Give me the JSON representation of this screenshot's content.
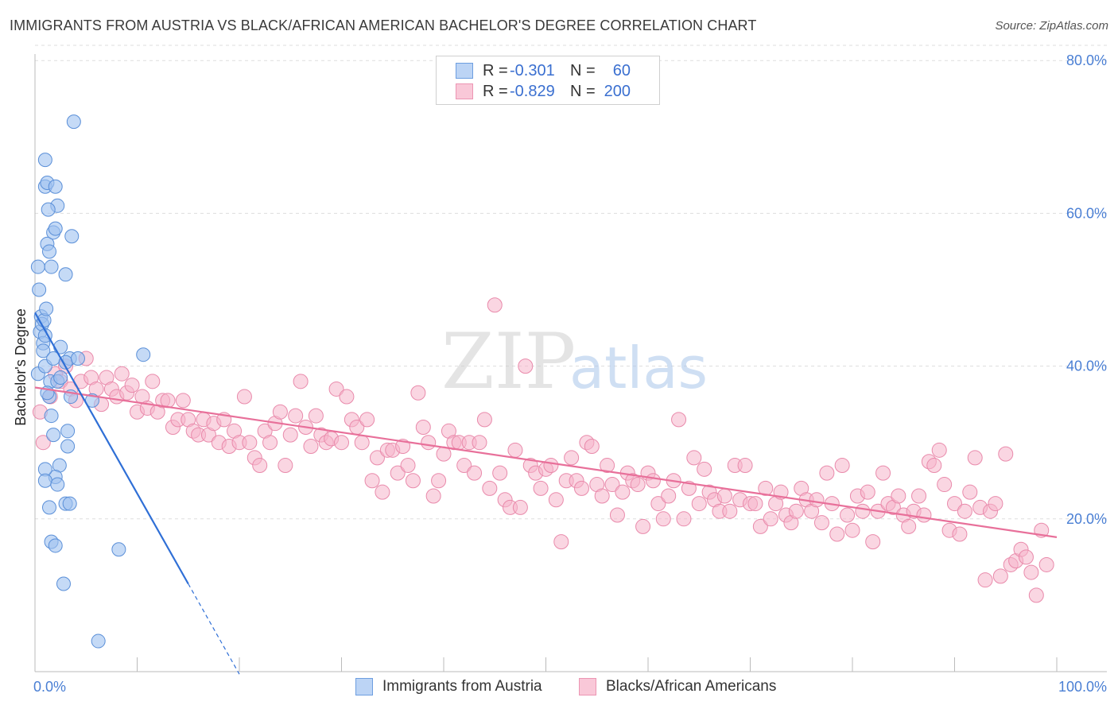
{
  "header": {
    "title": "IMMIGRANTS FROM AUSTRIA VS BLACK/AFRICAN AMERICAN BACHELOR'S DEGREE CORRELATION CHART",
    "source": "Source: ZipAtlas.com"
  },
  "watermark": {
    "zip": "ZIP",
    "atlas": "atlas"
  },
  "legend": {
    "rows": [
      {
        "r_label": "R =",
        "r_value": "-0.301",
        "n_label": "N =",
        "n_value": "60"
      },
      {
        "r_label": "R =",
        "r_value": "-0.829",
        "n_label": "N =",
        "n_value": "200"
      }
    ]
  },
  "bottom_legend": {
    "austria": "Immigrants from Austria",
    "black": "Blacks/African Americans"
  },
  "colors": {
    "austria_fill": "#9fc2f0",
    "austria_stroke": "#5a8fd8",
    "austria_line": "#2f6fd6",
    "black_fill": "#f6b4cb",
    "black_stroke": "#e98aab",
    "black_line": "#e8709a",
    "grid": "#dddddd",
    "axis_label": "#4a7fd4"
  },
  "chart_data": {
    "type": "scatter",
    "title": "IMMIGRANTS FROM AUSTRIA VS BLACK/AFRICAN AMERICAN BACHELOR'S DEGREE CORRELATION CHART",
    "xlabel": "",
    "ylabel": "Bachelor's Degree",
    "xlim": [
      0,
      100
    ],
    "ylim": [
      0,
      82
    ],
    "x_tick_labels": [
      "0.0%",
      "100.0%"
    ],
    "y_ticks": [
      20,
      40,
      60,
      80
    ],
    "y_tick_labels": [
      "20.0%",
      "40.0%",
      "60.0%",
      "80.0%"
    ],
    "grid": true,
    "series": [
      {
        "name": "Immigrants from Austria",
        "r": -0.301,
        "n": 60,
        "trend": {
          "x0": 0.0,
          "y0": 47.0,
          "x1": 15.0,
          "y1": 11.5,
          "dash_to_x": 20.0
        },
        "points": [
          [
            0.3,
            39
          ],
          [
            0.5,
            44.5
          ],
          [
            0.6,
            46.5
          ],
          [
            0.7,
            45.5
          ],
          [
            0.8,
            43
          ],
          [
            0.9,
            46
          ],
          [
            1.0,
            40
          ],
          [
            1.1,
            47.5
          ],
          [
            1.0,
            44
          ],
          [
            0.8,
            42
          ],
          [
            0.4,
            50
          ],
          [
            0.3,
            53
          ],
          [
            1.2,
            56
          ],
          [
            1.4,
            55
          ],
          [
            1.6,
            53
          ],
          [
            1.8,
            57.5
          ],
          [
            2.0,
            58
          ],
          [
            2.2,
            61
          ],
          [
            1.3,
            60.5
          ],
          [
            1.0,
            63.5
          ],
          [
            1.2,
            64
          ],
          [
            2.0,
            63.5
          ],
          [
            3.0,
            52
          ],
          [
            3.6,
            57
          ],
          [
            1.0,
            67
          ],
          [
            3.8,
            72
          ],
          [
            1.5,
            38
          ],
          [
            1.8,
            41
          ],
          [
            2.5,
            42.5
          ],
          [
            2.2,
            38
          ],
          [
            1.4,
            36
          ],
          [
            2.5,
            38.5
          ],
          [
            3.4,
            41
          ],
          [
            3.0,
            40.5
          ],
          [
            3.5,
            36
          ],
          [
            1.2,
            36.5
          ],
          [
            4.2,
            41
          ],
          [
            5.6,
            35.5
          ],
          [
            10.6,
            41.5
          ],
          [
            1.6,
            33.5
          ],
          [
            1.8,
            31
          ],
          [
            3.2,
            29.5
          ],
          [
            3.2,
            31.5
          ],
          [
            2.4,
            27
          ],
          [
            2.0,
            25.5
          ],
          [
            1.0,
            26.5
          ],
          [
            1.0,
            25
          ],
          [
            2.2,
            24.5
          ],
          [
            3.0,
            22
          ],
          [
            3.4,
            22
          ],
          [
            1.4,
            21.5
          ],
          [
            1.6,
            17
          ],
          [
            2.0,
            16.5
          ],
          [
            8.2,
            16
          ],
          [
            2.8,
            11.5
          ],
          [
            6.2,
            4
          ]
        ]
      },
      {
        "name": "Blacks/African Americans",
        "r": -0.829,
        "n": 200,
        "trend": {
          "x0": 0.0,
          "y0": 37.2,
          "x1": 100.0,
          "y1": 17.6
        },
        "points": [
          [
            0.5,
            34
          ],
          [
            0.8,
            30
          ],
          [
            1.5,
            36
          ],
          [
            2.0,
            39
          ],
          [
            2.5,
            38
          ],
          [
            3.0,
            40
          ],
          [
            3.5,
            37
          ],
          [
            4.0,
            35.5
          ],
          [
            4.5,
            38
          ],
          [
            5.0,
            41
          ],
          [
            5.5,
            38.5
          ],
          [
            6.0,
            37
          ],
          [
            6.5,
            35
          ],
          [
            7.0,
            38.5
          ],
          [
            7.5,
            37
          ],
          [
            8.0,
            36
          ],
          [
            8.5,
            39
          ],
          [
            9.0,
            36.5
          ],
          [
            9.5,
            37.5
          ],
          [
            10.0,
            34
          ],
          [
            10.5,
            36
          ],
          [
            11.0,
            34.5
          ],
          [
            11.5,
            38
          ],
          [
            12.0,
            34
          ],
          [
            12.5,
            35.5
          ],
          [
            13.0,
            35.5
          ],
          [
            13.5,
            32
          ],
          [
            14.0,
            33
          ],
          [
            14.5,
            35.5
          ],
          [
            15.0,
            33
          ],
          [
            15.5,
            31.5
          ],
          [
            16.0,
            31
          ],
          [
            16.5,
            33
          ],
          [
            17.0,
            31
          ],
          [
            17.5,
            32.5
          ],
          [
            18.0,
            30
          ],
          [
            18.5,
            33
          ],
          [
            19.0,
            29.5
          ],
          [
            19.5,
            31.5
          ],
          [
            20.0,
            30
          ],
          [
            20.5,
            36
          ],
          [
            21.0,
            30
          ],
          [
            21.5,
            28
          ],
          [
            22.0,
            27
          ],
          [
            22.5,
            31.5
          ],
          [
            23.0,
            30
          ],
          [
            23.5,
            32.5
          ],
          [
            24.0,
            34
          ],
          [
            24.5,
            27
          ],
          [
            25.0,
            31
          ],
          [
            25.5,
            33.5
          ],
          [
            26.0,
            38
          ],
          [
            26.5,
            32
          ],
          [
            27.0,
            29.5
          ],
          [
            27.5,
            33.5
          ],
          [
            28.0,
            31
          ],
          [
            28.5,
            30
          ],
          [
            29.0,
            30.5
          ],
          [
            29.5,
            37
          ],
          [
            30.0,
            30
          ],
          [
            30.5,
            36
          ],
          [
            31.0,
            33
          ],
          [
            31.5,
            32
          ],
          [
            32.0,
            30
          ],
          [
            32.5,
            33
          ],
          [
            33.0,
            25
          ],
          [
            33.5,
            28
          ],
          [
            34.0,
            23.5
          ],
          [
            34.5,
            29
          ],
          [
            35.0,
            29
          ],
          [
            35.5,
            26
          ],
          [
            36.0,
            29.5
          ],
          [
            36.5,
            27
          ],
          [
            37.0,
            25
          ],
          [
            37.5,
            36.5
          ],
          [
            38.0,
            32
          ],
          [
            38.5,
            30
          ],
          [
            39.0,
            23
          ],
          [
            39.5,
            25
          ],
          [
            40.0,
            28.5
          ],
          [
            40.5,
            31.5
          ],
          [
            41.0,
            30
          ],
          [
            41.5,
            30
          ],
          [
            42.0,
            27
          ],
          [
            42.5,
            30
          ],
          [
            43.0,
            26
          ],
          [
            43.5,
            30
          ],
          [
            44.0,
            33
          ],
          [
            44.5,
            24
          ],
          [
            45.0,
            48
          ],
          [
            45.5,
            26
          ],
          [
            46.0,
            22.5
          ],
          [
            46.5,
            21.5
          ],
          [
            47.0,
            29
          ],
          [
            47.5,
            21.5
          ],
          [
            48.0,
            40
          ],
          [
            48.5,
            27
          ],
          [
            49.0,
            26
          ],
          [
            49.5,
            24
          ],
          [
            50.0,
            26.5
          ],
          [
            50.5,
            27
          ],
          [
            51.0,
            22.5
          ],
          [
            51.5,
            17
          ],
          [
            52.0,
            25
          ],
          [
            52.5,
            28
          ],
          [
            53.0,
            25
          ],
          [
            53.5,
            24
          ],
          [
            54.0,
            30
          ],
          [
            54.5,
            29.5
          ],
          [
            55.0,
            24.5
          ],
          [
            55.5,
            23
          ],
          [
            56.0,
            27
          ],
          [
            56.5,
            24.5
          ],
          [
            57.0,
            20.5
          ],
          [
            57.5,
            23.5
          ],
          [
            58.0,
            26
          ],
          [
            58.5,
            25
          ],
          [
            59.0,
            24.5
          ],
          [
            59.5,
            19
          ],
          [
            60.0,
            26
          ],
          [
            60.5,
            25
          ],
          [
            61.0,
            22
          ],
          [
            61.5,
            20
          ],
          [
            62.0,
            23
          ],
          [
            62.5,
            25
          ],
          [
            63.0,
            33
          ],
          [
            63.5,
            20
          ],
          [
            64.0,
            24
          ],
          [
            64.5,
            28
          ],
          [
            65.0,
            22
          ],
          [
            65.5,
            26.5
          ],
          [
            66.0,
            23.5
          ],
          [
            66.5,
            22.5
          ],
          [
            67.0,
            21
          ],
          [
            67.5,
            23
          ],
          [
            68.0,
            21
          ],
          [
            68.5,
            27
          ],
          [
            69.0,
            22.5
          ],
          [
            69.5,
            27
          ],
          [
            70.0,
            22
          ],
          [
            70.5,
            22
          ],
          [
            71.0,
            19
          ],
          [
            71.5,
            24
          ],
          [
            72.0,
            20
          ],
          [
            72.5,
            22
          ],
          [
            73.0,
            23.5
          ],
          [
            73.5,
            20.5
          ],
          [
            74.0,
            19.5
          ],
          [
            74.5,
            21
          ],
          [
            75.0,
            24
          ],
          [
            75.5,
            22.5
          ],
          [
            76.0,
            21
          ],
          [
            76.5,
            22.5
          ],
          [
            77.0,
            19.5
          ],
          [
            77.5,
            26
          ],
          [
            78.0,
            22
          ],
          [
            78.5,
            18
          ],
          [
            79.0,
            27
          ],
          [
            79.5,
            20.5
          ],
          [
            80.0,
            18.5
          ],
          [
            80.5,
            23
          ],
          [
            81.0,
            21
          ],
          [
            81.5,
            23.5
          ],
          [
            82.0,
            17
          ],
          [
            82.5,
            21
          ],
          [
            83.0,
            26
          ],
          [
            83.5,
            22
          ],
          [
            84.0,
            21.5
          ],
          [
            84.5,
            23
          ],
          [
            85.0,
            20.5
          ],
          [
            85.5,
            19
          ],
          [
            86.0,
            21
          ],
          [
            86.5,
            23
          ],
          [
            87.0,
            20.5
          ],
          [
            87.5,
            27.5
          ],
          [
            88.0,
            27
          ],
          [
            88.5,
            29
          ],
          [
            89.0,
            24.5
          ],
          [
            89.5,
            18.5
          ],
          [
            90.0,
            22
          ],
          [
            90.5,
            18
          ],
          [
            91.0,
            21
          ],
          [
            91.5,
            23.5
          ],
          [
            92.0,
            28
          ],
          [
            92.5,
            21.5
          ],
          [
            93.0,
            12
          ],
          [
            93.5,
            21
          ],
          [
            94.0,
            22
          ],
          [
            94.5,
            12.5
          ],
          [
            95.0,
            28.5
          ],
          [
            95.5,
            14
          ],
          [
            96.0,
            14.5
          ],
          [
            96.5,
            16
          ],
          [
            97.0,
            15
          ],
          [
            97.5,
            13
          ],
          [
            98.0,
            10
          ],
          [
            98.5,
            18.5
          ],
          [
            99.0,
            14
          ]
        ]
      }
    ]
  }
}
